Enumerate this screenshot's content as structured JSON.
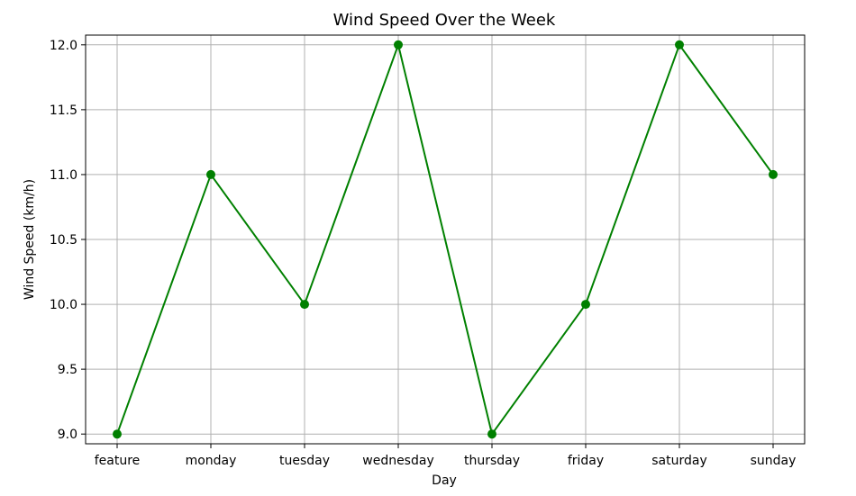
{
  "chart_data": {
    "type": "line",
    "title": "Wind Speed Over the Week",
    "xlabel": "Day",
    "ylabel": "Wind Speed (km/h)",
    "categories": [
      "feature",
      "monday",
      "tuesday",
      "wednesday",
      "thursday",
      "friday",
      "saturday",
      "sunday"
    ],
    "series": [
      {
        "values": [
          9.0,
          11.0,
          10.0,
          12.0,
          9.0,
          10.0,
          12.0,
          11.0
        ],
        "color": "#008000",
        "marker": "circle"
      }
    ],
    "ylim": [
      8.925,
      12.075
    ],
    "yticks": [
      "9.0",
      "9.5",
      "10.0",
      "10.5",
      "11.0",
      "11.5",
      "12.0"
    ],
    "grid": true
  }
}
